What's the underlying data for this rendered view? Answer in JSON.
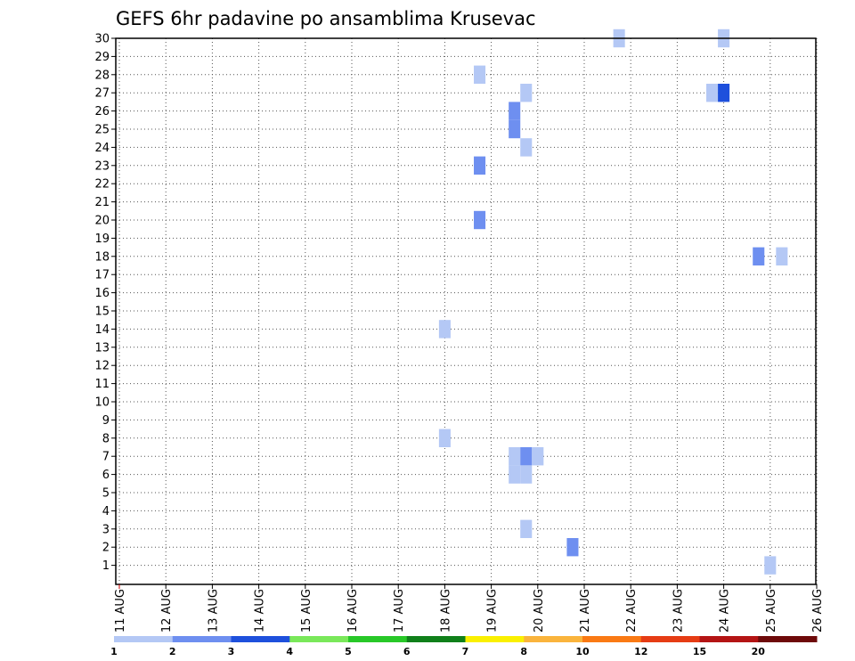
{
  "chart_data": {
    "type": "heatmap",
    "title": "GEFS 6hr padavine po ansamblima Krusevac",
    "x_ticks": [
      "11 AUG",
      "12 AUG",
      "13 AUG",
      "14 AUG",
      "15 AUG",
      "16 AUG",
      "17 AUG",
      "18 AUG",
      "19 AUG",
      "20 AUG",
      "21 AUG",
      "22 AUG",
      "23 AUG",
      "24 AUG",
      "25 AUG",
      "26 AUG"
    ],
    "y_ticks": [
      1,
      2,
      3,
      4,
      5,
      6,
      7,
      8,
      9,
      10,
      11,
      12,
      13,
      14,
      15,
      16,
      17,
      18,
      19,
      20,
      21,
      22,
      23,
      24,
      25,
      26,
      27,
      28,
      29,
      30
    ],
    "x_range_days": [
      11,
      26
    ],
    "y_range": [
      0,
      30
    ],
    "grid": true,
    "legend": "colorbar bottom",
    "colorbar": {
      "labels": [
        "1",
        "2",
        "3",
        "4",
        "5",
        "6",
        "7",
        "8",
        "10",
        "12",
        "15",
        "20"
      ],
      "colors": [
        "#b4c8f5",
        "#6e8ff0",
        "#1e50dc",
        "#7ae85a",
        "#28c828",
        "#10801a",
        "#faf000",
        "#fab43c",
        "#fa7a14",
        "#e63c14",
        "#b41414",
        "#6e0a0a"
      ]
    },
    "cells": [
      {
        "day": 21.75,
        "member": 30,
        "level": 1
      },
      {
        "day": 24.0,
        "member": 30,
        "level": 1
      },
      {
        "day": 18.75,
        "member": 28,
        "level": 1
      },
      {
        "day": 19.75,
        "member": 27,
        "level": 1
      },
      {
        "day": 23.75,
        "member": 27,
        "level": 1
      },
      {
        "day": 24.0,
        "member": 27,
        "level": 3
      },
      {
        "day": 19.5,
        "member": 26,
        "level": 2
      },
      {
        "day": 19.5,
        "member": 25,
        "level": 2
      },
      {
        "day": 19.75,
        "member": 24,
        "level": 1
      },
      {
        "day": 18.75,
        "member": 23,
        "level": 2
      },
      {
        "day": 18.75,
        "member": 20,
        "level": 2
      },
      {
        "day": 24.75,
        "member": 18,
        "level": 2
      },
      {
        "day": 25.25,
        "member": 18,
        "level": 1
      },
      {
        "day": 18.0,
        "member": 14,
        "level": 1
      },
      {
        "day": 18.0,
        "member": 8,
        "level": 1
      },
      {
        "day": 19.5,
        "member": 7,
        "level": 1
      },
      {
        "day": 19.75,
        "member": 7,
        "level": 2
      },
      {
        "day": 20.0,
        "member": 7,
        "level": 1
      },
      {
        "day": 19.5,
        "member": 6,
        "level": 1
      },
      {
        "day": 19.75,
        "member": 6,
        "level": 1
      },
      {
        "day": 19.75,
        "member": 3,
        "level": 1
      },
      {
        "day": 20.75,
        "member": 2,
        "level": 2
      },
      {
        "day": 25.0,
        "member": 1,
        "level": 1
      }
    ]
  }
}
